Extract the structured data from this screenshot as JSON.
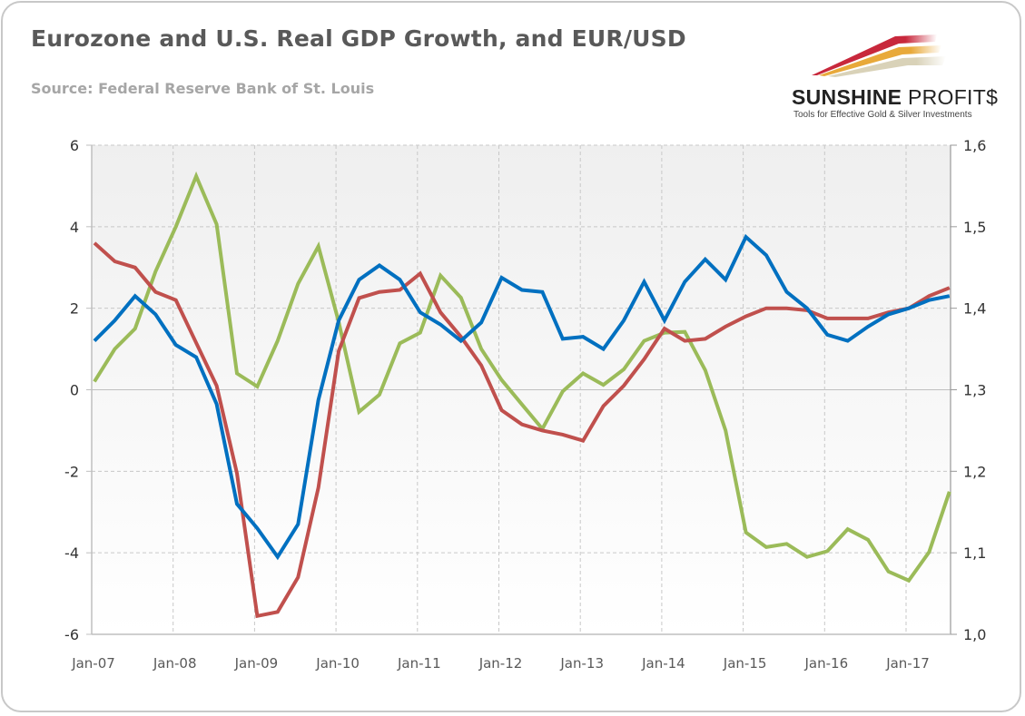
{
  "header": {
    "title": "Eurozone and U.S. Real GDP Growth, and EUR/USD",
    "subtitle": "Source: Federal Reserve Bank of St. Louis"
  },
  "logo": {
    "name_bold": "SUNSHINE",
    "name_light": "PROFIT$",
    "tagline": "Tools for Effective Gold & Silver Investments",
    "colors": [
      "#c8283c",
      "#e8a93a",
      "#d9d2b8"
    ]
  },
  "chart_data": {
    "type": "line",
    "title": "Eurozone and U.S. Real GDP Growth, and EUR/USD",
    "xlabel": "",
    "ylabel": "",
    "y_left": {
      "range": [
        -6,
        6
      ],
      "ticks": [
        -6,
        -4,
        -2,
        0,
        2,
        4,
        6
      ],
      "tick_labels": [
        "-6",
        "-4",
        "-2",
        "0",
        "2",
        "4",
        "6"
      ]
    },
    "y_right": {
      "range": [
        1.0,
        1.6
      ],
      "ticks": [
        1.0,
        1.1,
        1.2,
        1.3,
        1.4,
        1.5,
        1.6
      ],
      "tick_labels": [
        "1,0",
        "1,1",
        "1,2",
        "1,3",
        "1,4",
        "1,5",
        "1,6"
      ]
    },
    "x_tick_labels": [
      "Jan-07",
      "Jan-08",
      "Jan-09",
      "Jan-10",
      "Jan-11",
      "Jan-12",
      "Jan-13",
      "Jan-14",
      "Jan-15",
      "Jan-16",
      "Jan-17"
    ],
    "x_start": "2007-Q1",
    "x_frequency": "quarterly",
    "grid": true,
    "legend": "none",
    "series": [
      {
        "name": "U.S. Real GDP Growth",
        "axis": "left",
        "color": "#0070c0",
        "values": [
          1.2,
          1.7,
          2.3,
          1.85,
          1.1,
          0.8,
          -0.35,
          -2.8,
          -3.4,
          -4.1,
          -3.3,
          -0.25,
          1.7,
          2.7,
          3.05,
          2.7,
          1.9,
          1.6,
          1.2,
          1.65,
          2.75,
          2.45,
          2.4,
          1.25,
          1.3,
          1.0,
          1.7,
          2.65,
          1.7,
          2.65,
          3.2,
          2.7,
          3.75,
          3.3,
          2.4,
          2.0,
          1.35,
          1.2,
          1.55,
          1.85,
          2.0,
          2.2,
          2.3
        ]
      },
      {
        "name": "Eurozone Real GDP Growth",
        "axis": "left",
        "color": "#c0504d",
        "values": [
          3.6,
          3.15,
          3.0,
          2.4,
          2.2,
          1.15,
          0.1,
          -2.05,
          -5.55,
          -5.45,
          -4.6,
          -2.4,
          0.95,
          2.25,
          2.4,
          2.45,
          2.85,
          1.9,
          1.3,
          0.6,
          -0.5,
          -0.85,
          -1.0,
          -1.1,
          -1.25,
          -0.4,
          0.1,
          0.75,
          1.5,
          1.2,
          1.25,
          1.55,
          1.8,
          2.0,
          2.0,
          1.95,
          1.75,
          1.75,
          1.75,
          1.9,
          2.0,
          2.3,
          2.5
        ]
      },
      {
        "name": "EUR/USD",
        "axis": "right",
        "color": "#9bbb59",
        "values": [
          1.31,
          1.35,
          1.375,
          1.445,
          1.5,
          1.562,
          1.503,
          1.32,
          1.304,
          1.36,
          1.43,
          1.476,
          1.383,
          1.273,
          1.294,
          1.357,
          1.37,
          1.44,
          1.413,
          1.35,
          1.312,
          1.282,
          1.252,
          1.298,
          1.32,
          1.306,
          1.325,
          1.36,
          1.37,
          1.371,
          1.324,
          1.25,
          1.125,
          1.107,
          1.111,
          1.095,
          1.102,
          1.129,
          1.116,
          1.077,
          1.066,
          1.101,
          1.175
        ]
      }
    ]
  }
}
